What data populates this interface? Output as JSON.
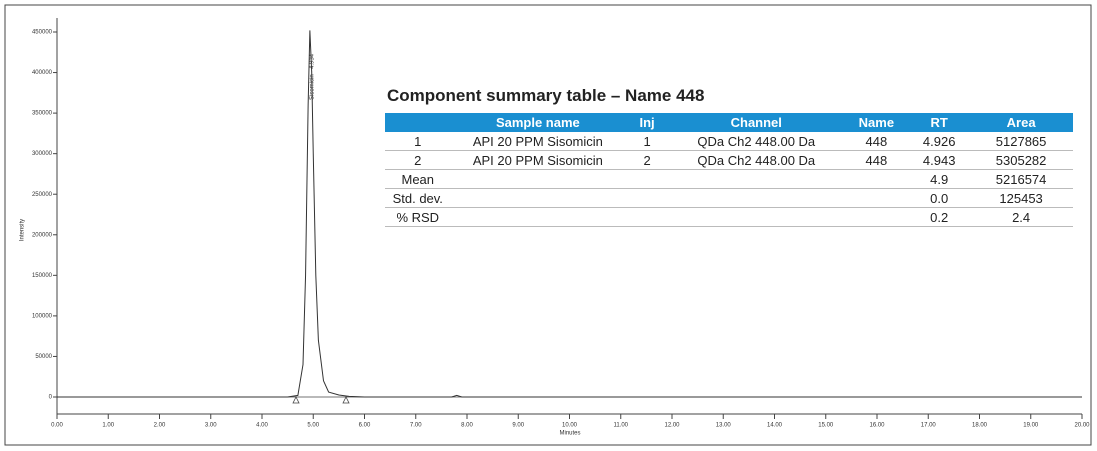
{
  "chart_data": {
    "type": "line",
    "xlabel": "Minutes",
    "ylabel": "Intensity",
    "x": [
      0,
      4.5,
      4.7,
      4.8,
      4.85,
      4.9,
      4.934,
      4.97,
      5.0,
      5.05,
      5.1,
      5.2,
      5.3,
      5.5,
      5.7,
      6.0,
      7.7,
      7.8,
      7.9,
      8.5,
      20
    ],
    "values": [
      0,
      0,
      2000,
      40000,
      150000,
      360000,
      452000,
      400000,
      300000,
      150000,
      70000,
      20000,
      6000,
      2500,
      800,
      0,
      0,
      2000,
      0,
      0,
      0
    ],
    "color": "#333333",
    "annotations": [
      {
        "text": "Sisomicin - 4.934",
        "x": 4.934
      }
    ],
    "xlim": [
      0,
      20
    ],
    "xticks": [
      {
        "value": 0,
        "label": "0.00"
      },
      {
        "value": 1,
        "label": "1.00"
      },
      {
        "value": 2,
        "label": "2.00"
      },
      {
        "value": 3,
        "label": "3.00"
      },
      {
        "value": 4,
        "label": "4.00"
      },
      {
        "value": 5,
        "label": "5.00"
      },
      {
        "value": 6,
        "label": "6.00"
      },
      {
        "value": 7,
        "label": "7.00"
      },
      {
        "value": 8,
        "label": "8.00"
      },
      {
        "value": 9,
        "label": "9.00"
      },
      {
        "value": 10,
        "label": "10.00"
      },
      {
        "value": 11,
        "label": "11.00"
      },
      {
        "value": 12,
        "label": "12.00"
      },
      {
        "value": 13,
        "label": "13.00"
      },
      {
        "value": 14,
        "label": "14.00"
      },
      {
        "value": 15,
        "label": "15.00"
      },
      {
        "value": 16,
        "label": "16.00"
      },
      {
        "value": 17,
        "label": "17.00"
      },
      {
        "value": 18,
        "label": "18.00"
      },
      {
        "value": 19,
        "label": "19.00"
      },
      {
        "value": 20,
        "label": "20.00"
      }
    ],
    "ylim": [
      0,
      450000
    ],
    "yticks": [
      0,
      50000,
      100000,
      150000,
      200000,
      250000,
      300000,
      350000,
      400000,
      450000
    ]
  },
  "table": {
    "title": "Component summary table – Name 448",
    "header": [
      "",
      "Sample name",
      "Inj",
      "Channel",
      "Name",
      "RT",
      "Area"
    ],
    "rows": [
      [
        "1",
        "API 20 PPM Sisomicin",
        "1",
        "QDa Ch2 448.00 Da",
        "448",
        "4.926",
        "5127865"
      ],
      [
        "2",
        "API 20 PPM Sisomicin",
        "2",
        "QDa Ch2 448.00 Da",
        "448",
        "4.943",
        "5305282"
      ],
      [
        "Mean",
        "",
        "",
        "",
        "",
        "4.9",
        "5216574"
      ],
      [
        "Std. dev.",
        "",
        "",
        "",
        "",
        "0.0",
        "125453"
      ],
      [
        "% RSD",
        "",
        "",
        "",
        "",
        "0.2",
        "2.4"
      ]
    ]
  }
}
